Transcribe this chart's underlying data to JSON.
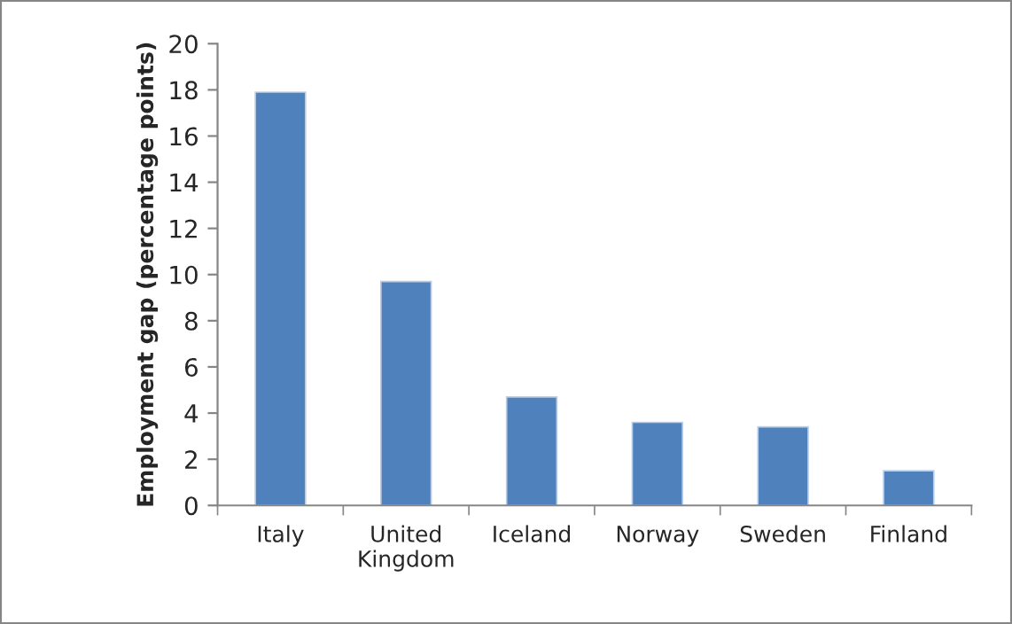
{
  "chart_data": {
    "type": "bar",
    "ylabel": "Employment gap (percentage points)",
    "categories": [
      "Italy",
      "United\nKingdom",
      "Iceland",
      "Norway",
      "Sweden",
      "Finland"
    ],
    "values": [
      17.9,
      9.7,
      4.7,
      3.6,
      3.4,
      1.5
    ],
    "color": "#4f81bd",
    "ylim": [
      0,
      20
    ],
    "yticks": [
      0,
      2,
      4,
      6,
      8,
      10,
      12,
      14,
      16,
      18,
      20
    ],
    "grid": false,
    "legend": false
  }
}
